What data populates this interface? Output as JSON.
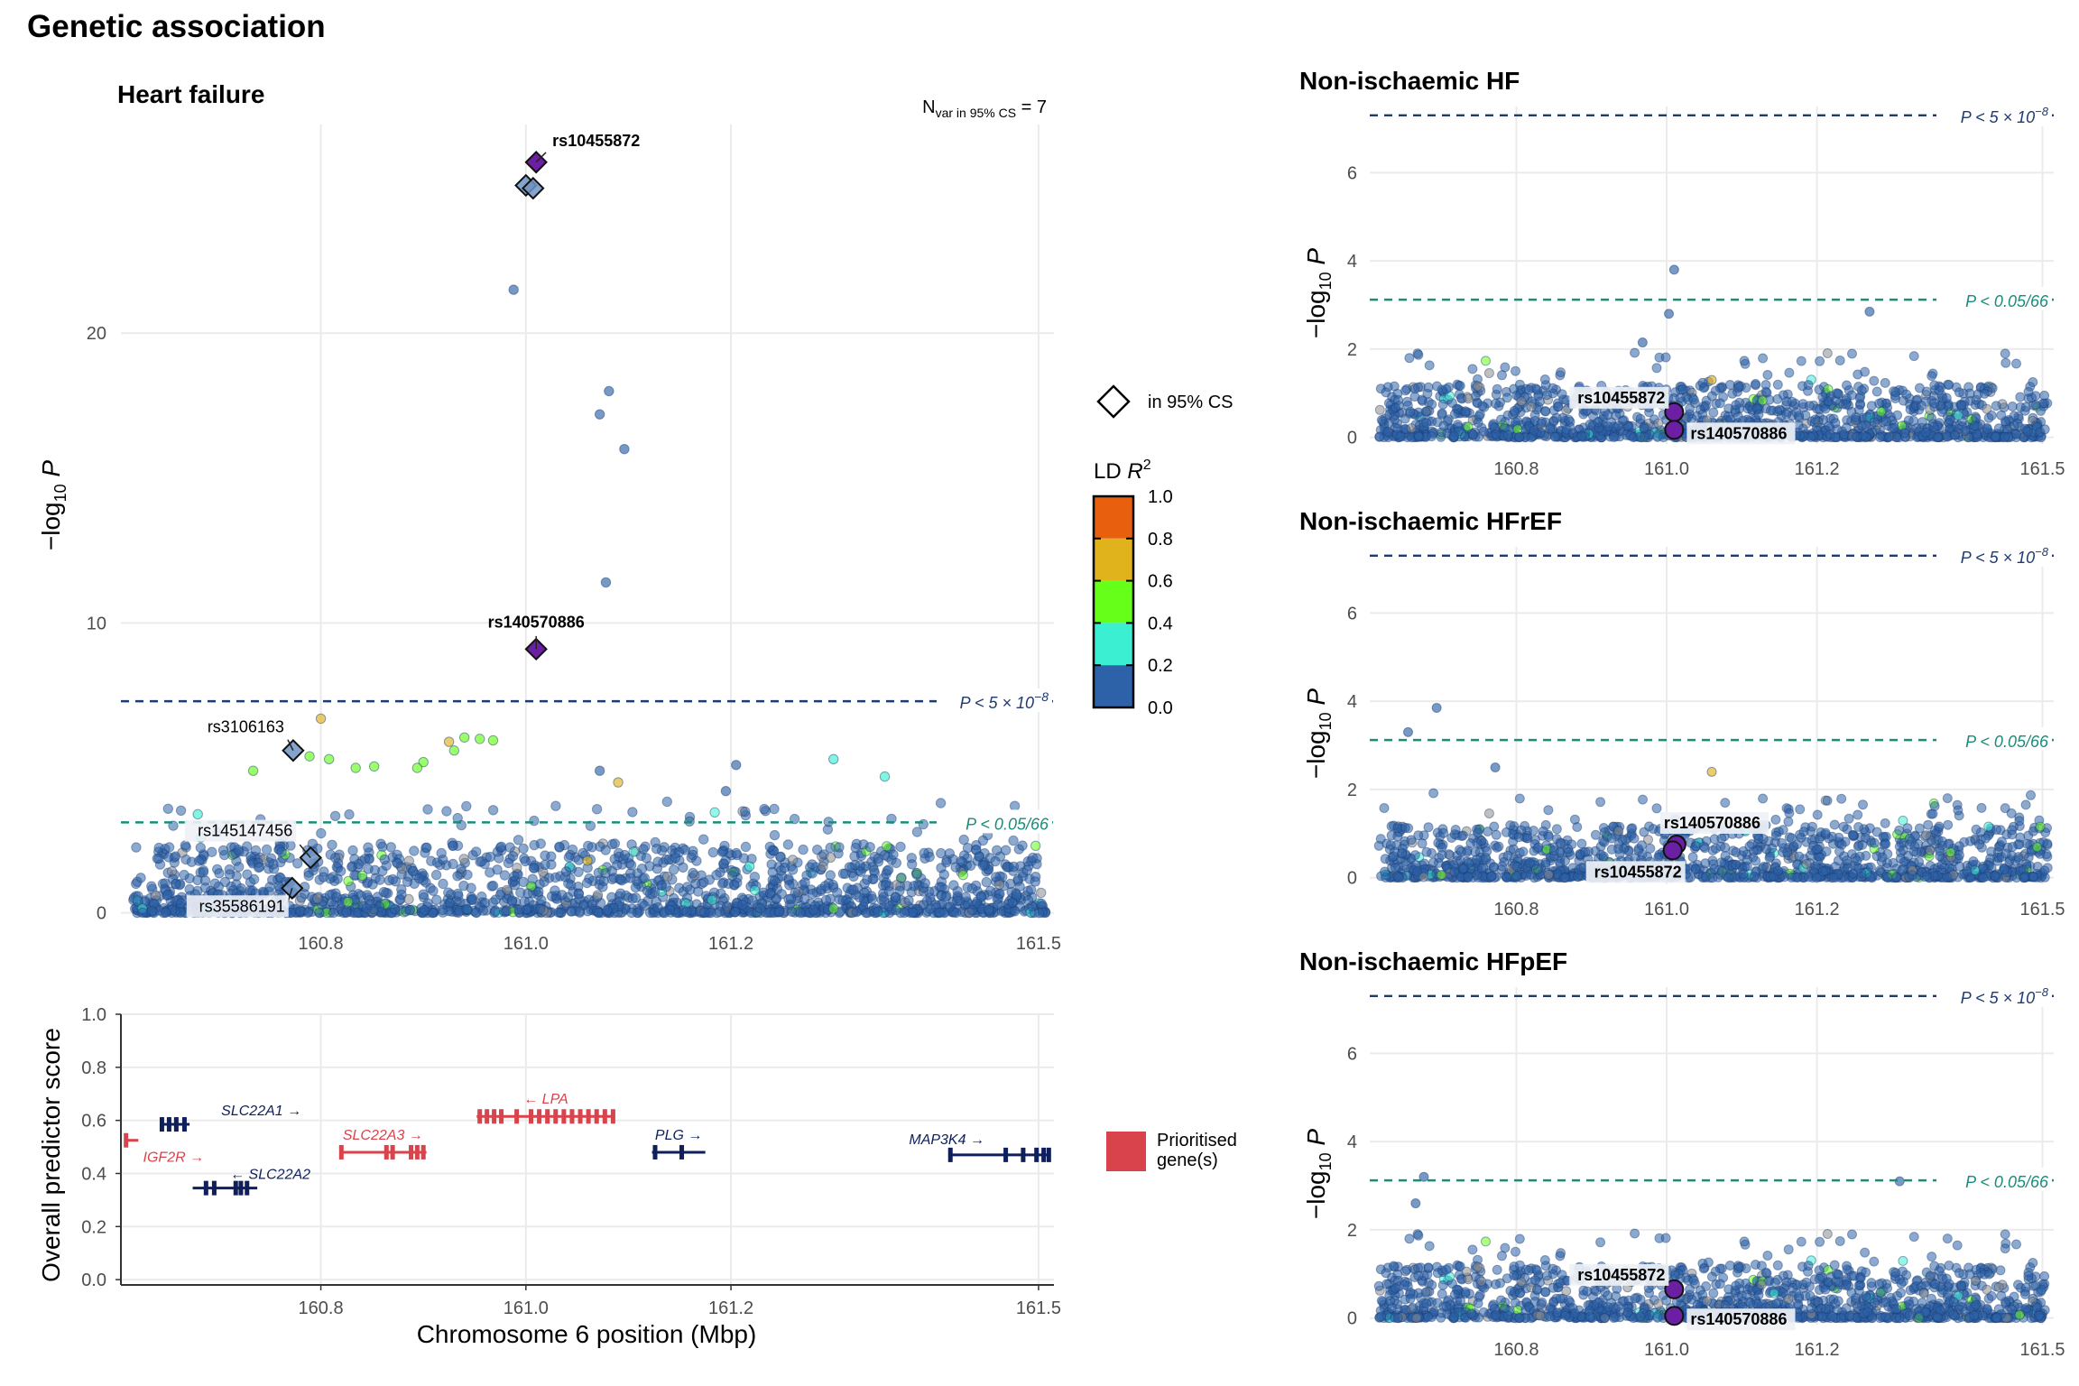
{
  "title": "Genetic association",
  "colors": {
    "ld_0": "#2E62A8",
    "ld_1": "#3BF0D2",
    "ld_2": "#66FF19",
    "ld_3": "#E0B21C",
    "ld_4": "#E8600E",
    "lead": "#6B1FA2",
    "gw_line": "#1F3A6E",
    "sug_line": "#1B8C7A",
    "prioritised": "#D8434C",
    "gene_other": "#0E1F5B",
    "grid": "#EBEBEB"
  },
  "main_panel": {
    "title": "Heart failure",
    "ylabel_main": "−log",
    "ylabel_sub": "10",
    "ylabel_end": " P",
    "nvar_main": "N",
    "nvar_sub": "var in 95% CS",
    "nvar_value": " = 7",
    "xlim": [
      160.605,
      161.515
    ],
    "ylim": [
      -0.2,
      27.2
    ],
    "xticks": [
      "160.8",
      "161.0",
      "161.2",
      "161.5"
    ],
    "xtick_values": [
      160.8,
      161.0,
      161.2,
      161.5
    ],
    "yticks": [
      "0",
      "10",
      "20"
    ],
    "ytick_values": [
      0,
      10,
      20
    ],
    "genome_wide_threshold": 7.3,
    "suggestive_threshold": 3.12,
    "gw_label_main": "P < 5 × 10",
    "gw_label_exp": "−8",
    "sug_label": "P < 0.05/66",
    "credible_set": [
      {
        "x": 161.01,
        "y": 25.9,
        "label": "rs10455872",
        "lead": true
      },
      {
        "x": 161.0,
        "y": 25.1,
        "label": "",
        "lead": false
      },
      {
        "x": 161.007,
        "y": 25.0,
        "label": "",
        "lead": false
      },
      {
        "x": 161.01,
        "y": 9.1,
        "label": "rs140570886",
        "lead": true
      },
      {
        "x": 160.773,
        "y": 5.6,
        "label": "rs3106163",
        "lead": false
      },
      {
        "x": 160.79,
        "y": 1.9,
        "label": "rs145147456",
        "lead": false
      },
      {
        "x": 160.772,
        "y": 0.85,
        "label": "rs35586191",
        "lead": false
      }
    ],
    "notable_points": [
      {
        "x": 160.988,
        "y": 21.5,
        "ld": 0
      },
      {
        "x": 161.081,
        "y": 18.0,
        "ld": 0
      },
      {
        "x": 161.072,
        "y": 17.2,
        "ld": 0
      },
      {
        "x": 161.096,
        "y": 16.0,
        "ld": 0
      },
      {
        "x": 161.078,
        "y": 11.4,
        "ld": 0
      },
      {
        "x": 160.8,
        "y": 6.7,
        "ld": 3
      },
      {
        "x": 160.968,
        "y": 5.95,
        "ld": 2
      },
      {
        "x": 160.955,
        "y": 6.0,
        "ld": 2
      },
      {
        "x": 160.94,
        "y": 6.05,
        "ld": 2
      },
      {
        "x": 160.925,
        "y": 5.9,
        "ld": 3
      },
      {
        "x": 160.93,
        "y": 5.6,
        "ld": 2
      },
      {
        "x": 160.9,
        "y": 5.2,
        "ld": 2
      },
      {
        "x": 160.894,
        "y": 5.0,
        "ld": 2
      },
      {
        "x": 160.852,
        "y": 5.05,
        "ld": 2
      },
      {
        "x": 160.834,
        "y": 5.0,
        "ld": 2
      },
      {
        "x": 160.808,
        "y": 5.3,
        "ld": 2
      },
      {
        "x": 160.789,
        "y": 5.4,
        "ld": 2
      },
      {
        "x": 160.734,
        "y": 4.9,
        "ld": 2
      },
      {
        "x": 161.09,
        "y": 4.5,
        "ld": 3
      },
      {
        "x": 161.3,
        "y": 5.3,
        "ld": 1
      },
      {
        "x": 161.35,
        "y": 4.7,
        "ld": 1
      },
      {
        "x": 160.68,
        "y": 3.4,
        "ld": 1
      },
      {
        "x": 160.683,
        "y": 2.6,
        "ld": 1
      },
      {
        "x": 161.218,
        "y": 1.6,
        "ld": 1
      },
      {
        "x": 161.06,
        "y": 1.8,
        "ld": 3
      },
      {
        "x": 161.205,
        "y": 5.1,
        "ld": 0
      },
      {
        "x": 161.072,
        "y": 4.9,
        "ld": 0
      },
      {
        "x": 161.195,
        "y": 4.2,
        "ld": 0
      }
    ]
  },
  "gene_panel": {
    "ylabel": "Overall predictor score",
    "xlabel": "Chromosome 6 position (Mbp)",
    "xlim": [
      160.605,
      161.515
    ],
    "ylim": [
      -0.02,
      1.0
    ],
    "yticks": [
      "0.0",
      "0.2",
      "0.4",
      "0.6",
      "0.8",
      "1.0"
    ],
    "ytick_values": [
      0.0,
      0.2,
      0.4,
      0.6,
      0.8,
      1.0
    ],
    "xticks": [
      "160.8",
      "161.0",
      "161.2",
      "161.5"
    ],
    "xtick_values": [
      160.8,
      161.0,
      161.2,
      161.5
    ],
    "legend_label_1": "Prioritised",
    "legend_label_2": "gene(s)",
    "genes": [
      {
        "name": "SLC22A1 →",
        "start": 160.643,
        "end": 160.672,
        "score": 0.585,
        "prioritised": false,
        "exons": [
          160.645,
          160.652,
          160.659,
          160.667
        ]
      },
      {
        "name": "IGF2R →",
        "start": 160.609,
        "end": 160.622,
        "score": 0.525,
        "prioritised": true,
        "exons": [
          160.61
        ]
      },
      {
        "name": "← SLC22A2",
        "start": 160.675,
        "end": 160.738,
        "score": 0.345,
        "prioritised": false,
        "exons": [
          160.688,
          160.696,
          160.717,
          160.722,
          160.728
        ]
      },
      {
        "name": "SLC22A3 →",
        "start": 160.818,
        "end": 160.903,
        "score": 0.48,
        "prioritised": true,
        "exons": [
          160.82,
          160.864,
          160.87,
          160.888,
          160.894,
          160.9
        ]
      },
      {
        "name": "← LPA",
        "start": 160.952,
        "end": 161.087,
        "score": 0.615,
        "prioritised": true,
        "exons": [
          160.955,
          160.962,
          160.969,
          160.976,
          160.991,
          161.005,
          161.013,
          161.021,
          161.029,
          161.037,
          161.045,
          161.053,
          161.061,
          161.069,
          161.077,
          161.085
        ]
      },
      {
        "name": "PLG →",
        "start": 161.123,
        "end": 161.175,
        "score": 0.48,
        "prioritised": false,
        "exons": [
          161.126,
          161.152
        ]
      },
      {
        "name": "MAP3K4 →",
        "start": 161.412,
        "end": 161.512,
        "score": 0.47,
        "prioritised": false,
        "exons": [
          161.414,
          161.468,
          161.485,
          161.498,
          161.505,
          161.51
        ]
      }
    ]
  },
  "side_panels": [
    {
      "title": "Non-ischaemic HF",
      "ylabel_main": "−log",
      "ylabel_sub": "10",
      "ylabel_end": " P",
      "xlim": [
        160.605,
        161.515
      ],
      "ylim": [
        -0.15,
        7.5
      ],
      "yticks": [
        "0",
        "2",
        "4",
        "6"
      ],
      "ytick_values": [
        0,
        2,
        4,
        6
      ],
      "xticks": [
        "160.8",
        "161.0",
        "161.2",
        "161.5"
      ],
      "xtick_values": [
        160.8,
        161.0,
        161.2,
        161.5
      ],
      "genome_wide_threshold": 7.3,
      "suggestive_threshold": 3.12,
      "gw_label_main": "P < 5 × 10",
      "gw_label_exp": "−8",
      "sug_label": "P < 0.05/66",
      "lead_snps": [
        {
          "x": 161.01,
          "y": 0.57,
          "label": "rs10455872",
          "side": "left-up"
        },
        {
          "x": 161.01,
          "y": 0.17,
          "label": "rs140570886",
          "side": "right-down"
        }
      ],
      "notable_points": [
        {
          "x": 161.01,
          "y": 3.8,
          "ld": 0
        },
        {
          "x": 161.003,
          "y": 2.8,
          "ld": 0
        },
        {
          "x": 161.27,
          "y": 2.85,
          "ld": 0
        },
        {
          "x": 160.968,
          "y": 2.15,
          "ld": 0
        },
        {
          "x": 161.06,
          "y": 1.3,
          "ld": 3
        }
      ]
    },
    {
      "title": "Non-ischaemic HFrEF",
      "ylabel_main": "−log",
      "ylabel_sub": "10",
      "ylabel_end": " P",
      "xlim": [
        160.605,
        161.515
      ],
      "ylim": [
        -0.15,
        7.5
      ],
      "yticks": [
        "0",
        "2",
        "4",
        "6"
      ],
      "ytick_values": [
        0,
        2,
        4,
        6
      ],
      "xticks": [
        "160.8",
        "161.0",
        "161.2",
        "161.5"
      ],
      "xtick_values": [
        160.8,
        161.0,
        161.2,
        161.5
      ],
      "genome_wide_threshold": 7.3,
      "suggestive_threshold": 3.12,
      "gw_label_main": "P < 5 × 10",
      "gw_label_exp": "−8",
      "sug_label": "P < 0.05/66",
      "lead_snps": [
        {
          "x": 161.013,
          "y": 0.75,
          "label": "rs140570886",
          "side": "right-up"
        },
        {
          "x": 161.008,
          "y": 0.62,
          "label": "rs10455872",
          "side": "left-down"
        }
      ],
      "notable_points": [
        {
          "x": 160.694,
          "y": 3.85,
          "ld": 0
        },
        {
          "x": 160.656,
          "y": 3.3,
          "ld": 0
        },
        {
          "x": 160.772,
          "y": 2.5,
          "ld": 0
        },
        {
          "x": 161.06,
          "y": 2.4,
          "ld": 3
        }
      ]
    },
    {
      "title": "Non-ischaemic HFpEF",
      "ylabel_main": "−log",
      "ylabel_sub": "10",
      "ylabel_end": " P",
      "xlim": [
        160.605,
        161.515
      ],
      "ylim": [
        -0.15,
        7.5
      ],
      "yticks": [
        "0",
        "2",
        "4",
        "6"
      ],
      "ytick_values": [
        0,
        2,
        4,
        6
      ],
      "xticks": [
        "160.8",
        "161.0",
        "161.2",
        "161.5"
      ],
      "xtick_values": [
        160.8,
        161.0,
        161.2,
        161.5
      ],
      "genome_wide_threshold": 7.3,
      "suggestive_threshold": 3.12,
      "gw_label_main": "P < 5 × 10",
      "gw_label_exp": "−8",
      "sug_label": "P < 0.05/66",
      "lead_snps": [
        {
          "x": 161.01,
          "y": 0.65,
          "label": "rs10455872",
          "side": "left-up"
        },
        {
          "x": 161.01,
          "y": 0.05,
          "label": "rs140570886",
          "side": "right-down"
        }
      ],
      "notable_points": [
        {
          "x": 160.677,
          "y": 3.2,
          "ld": 0
        },
        {
          "x": 160.666,
          "y": 2.6,
          "ld": 0
        },
        {
          "x": 161.31,
          "y": 3.1,
          "ld": 0
        }
      ]
    }
  ],
  "legend": {
    "cs_label": "in 95% CS",
    "ld_title_main": "LD ",
    "ld_title_r": "R",
    "ld_title_sup": "2",
    "ld_ticks": [
      "1.0",
      "0.8",
      "0.6",
      "0.4",
      "0.2",
      "0.0"
    ]
  }
}
